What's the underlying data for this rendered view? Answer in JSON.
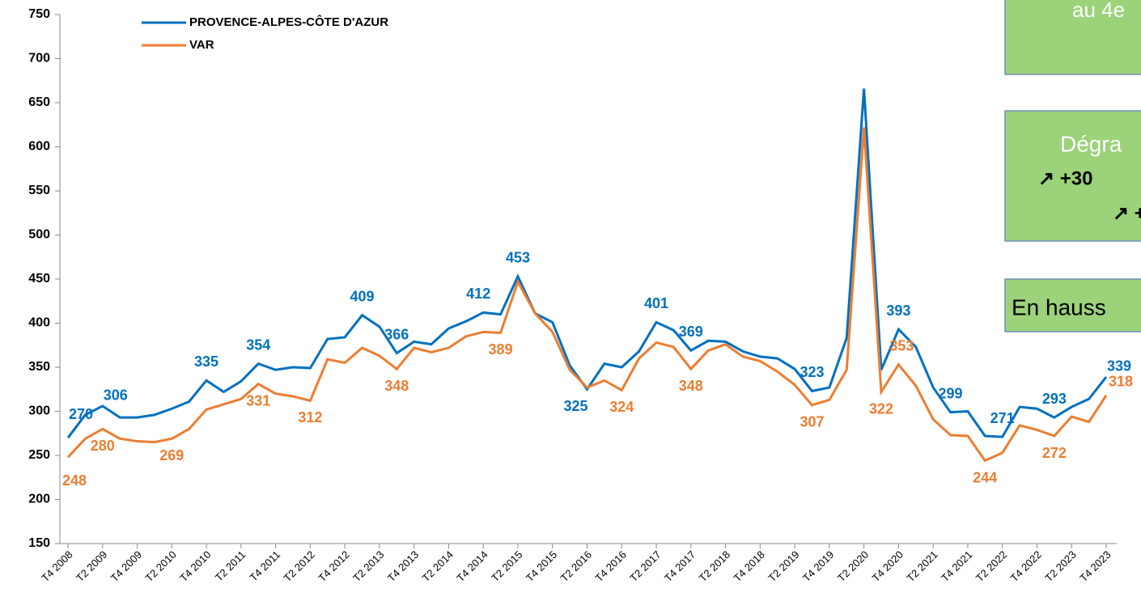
{
  "chart_data": {
    "type": "line",
    "categories": [
      "T4 2008",
      null,
      "T2 2009",
      null,
      "T4 2009",
      null,
      "T2 2010",
      null,
      "T4 2010",
      null,
      "T2 2011",
      null,
      "T4 2011",
      null,
      "T2 2012",
      null,
      "T4 2012",
      null,
      "T2 2013",
      null,
      "T4 2013",
      null,
      "T2 2014",
      null,
      "T4 2014",
      null,
      "T2 2015",
      null,
      "T4 2015",
      null,
      "T2 2016",
      null,
      "T4 2016",
      null,
      "T2 2017",
      null,
      "T4 2017",
      null,
      "T2 2018",
      null,
      "T4 2018",
      null,
      "T2 2019",
      null,
      "T4 2019",
      null,
      "T2 2020",
      null,
      "T4 2020",
      null,
      "T2 2021",
      null,
      "T4 2021",
      null,
      "T2 2022",
      null,
      "T4 2022",
      null,
      "T2 2023",
      null,
      "T4 2023"
    ],
    "series": [
      {
        "name": "PROVENCE-ALPES-CÔTE D'AZUR",
        "color": "#0070c0",
        "values": [
          270,
          296,
          306,
          293,
          293,
          296,
          303,
          311,
          335,
          322,
          334,
          354,
          347,
          350,
          349,
          382,
          384,
          409,
          396,
          366,
          379,
          376,
          394,
          402,
          412,
          410,
          453,
          411,
          401,
          352,
          325,
          354,
          350,
          368,
          401,
          392,
          369,
          380,
          379,
          368,
          362,
          360,
          348,
          323,
          327,
          383,
          666,
          347,
          393,
          373,
          327,
          299,
          300,
          272,
          271,
          305,
          303,
          293,
          305,
          314,
          339
        ],
        "labels_at": [
          0,
          2,
          8,
          11,
          17,
          19,
          24,
          26,
          30,
          34,
          36,
          43,
          48,
          51,
          54,
          57,
          60
        ]
      },
      {
        "name": "VAR",
        "color": "#ed7d31",
        "values": [
          248,
          269,
          280,
          269,
          266,
          265,
          269,
          280,
          302,
          308,
          314,
          331,
          320,
          317,
          312,
          359,
          355,
          372,
          363,
          348,
          372,
          367,
          372,
          385,
          390,
          389,
          447,
          411,
          390,
          347,
          327,
          335,
          324,
          360,
          378,
          373,
          348,
          369,
          376,
          362,
          357,
          345,
          330,
          307,
          313,
          347,
          622,
          322,
          353,
          329,
          291,
          273,
          272,
          244,
          253,
          284,
          279,
          272,
          294,
          288,
          318
        ],
        "labels_at": [
          0,
          2,
          6,
          11,
          14,
          19,
          25,
          32,
          36,
          43,
          47,
          48,
          53,
          57,
          60
        ]
      }
    ],
    "ylim": [
      150,
      750
    ],
    "yticks": [
      150,
      200,
      250,
      300,
      350,
      400,
      450,
      500,
      550,
      600,
      650,
      700,
      750
    ],
    "legend": "top-left"
  },
  "annotations": {
    "box1": "au 4e",
    "box2_line1": "Dégra",
    "box2_line2": "↗    +30",
    "box2_line3": "↗    +",
    "box3": "En hauss"
  }
}
